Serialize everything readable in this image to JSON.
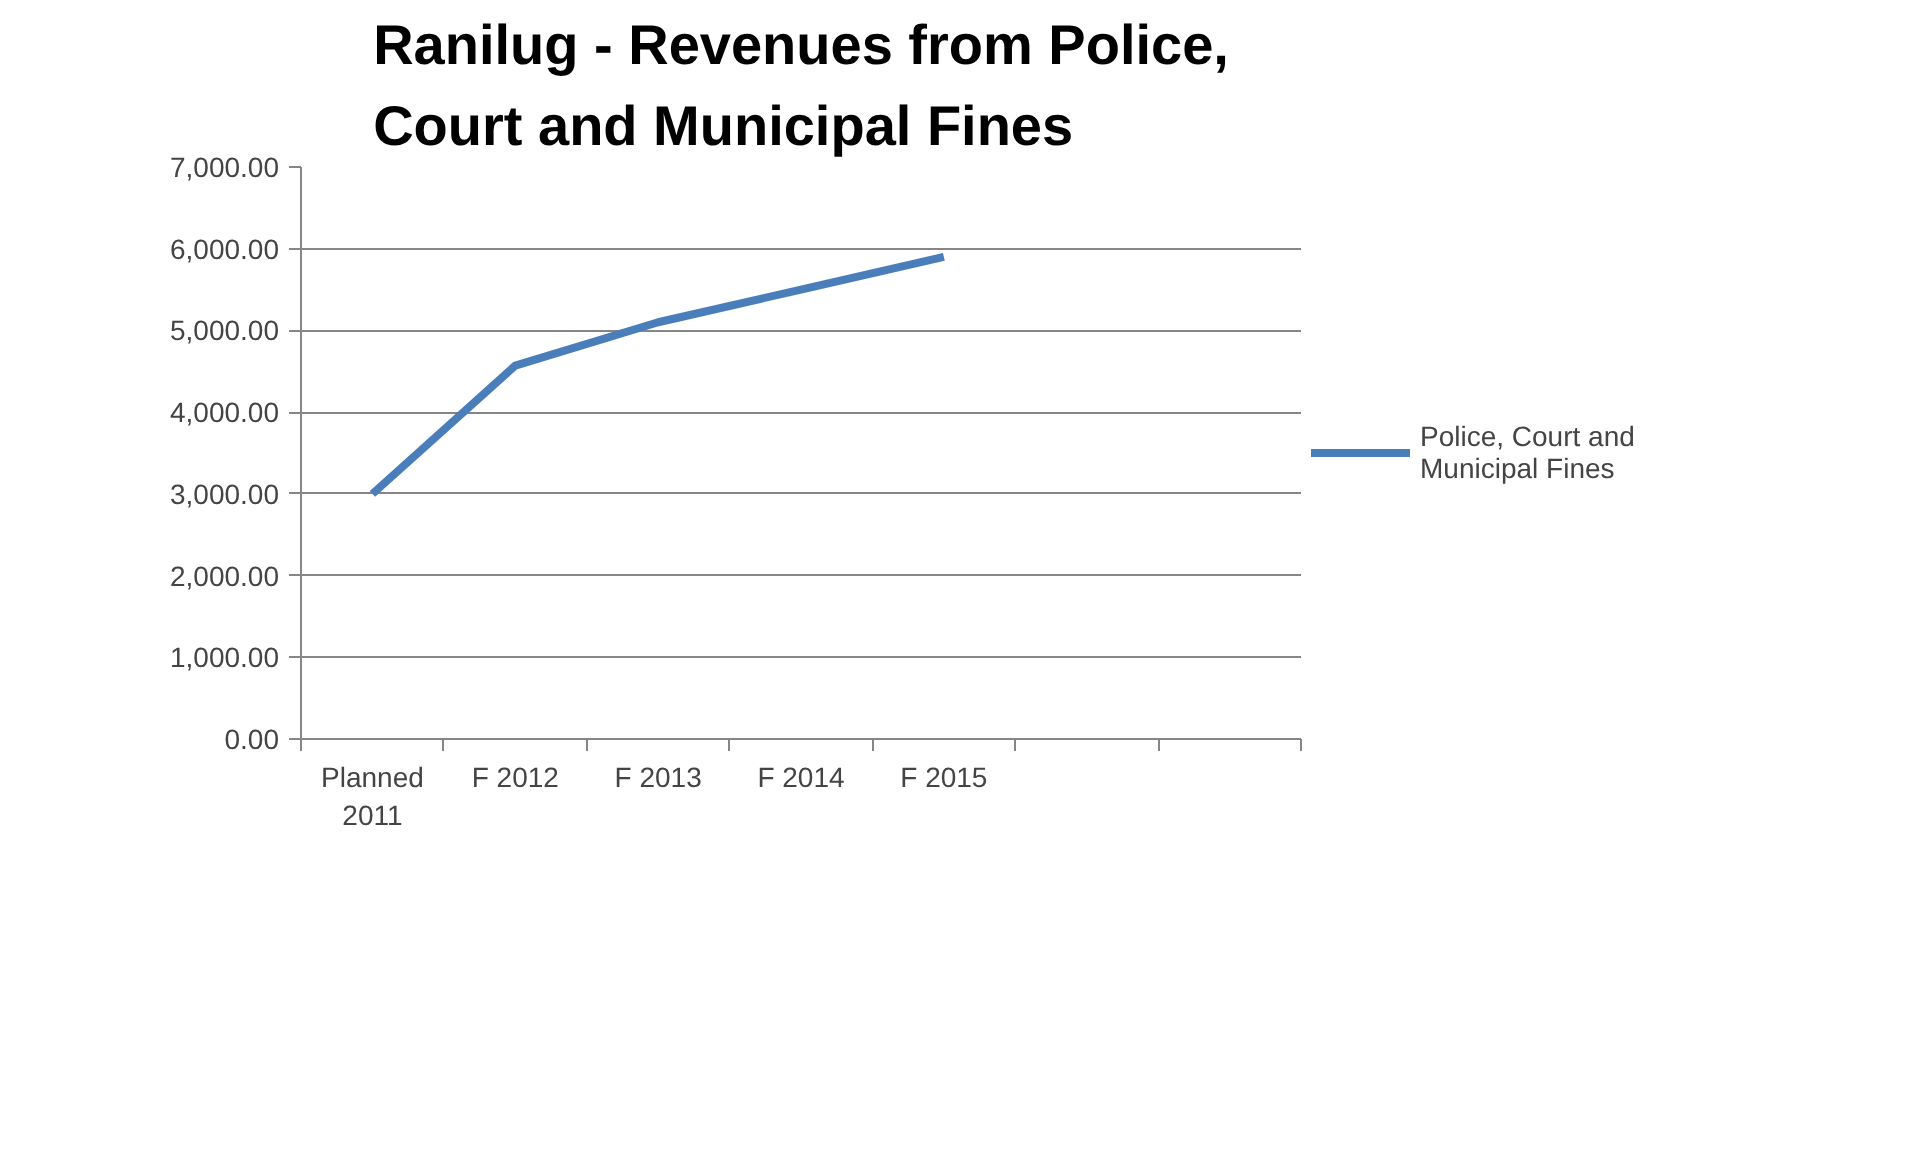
{
  "chart_data": {
    "type": "line",
    "title": "Ranilug - Revenues from Police, Court and Municipal Fines",
    "categories": [
      "Planned\n2011",
      "F 2012",
      "F 2013",
      "F 2014",
      "F 2015",
      null,
      null
    ],
    "series": [
      {
        "name": "Police, Court and Municipal Fines",
        "color": "#4a7ebb",
        "values": [
          3000,
          4570,
          5100,
          5500,
          5900,
          null,
          null
        ]
      }
    ],
    "ylim": [
      0,
      7000
    ],
    "yticks": [
      {
        "value": 0,
        "label": "0.00"
      },
      {
        "value": 1000,
        "label": "1,000.00"
      },
      {
        "value": 2000,
        "label": "2,000.00"
      },
      {
        "value": 3000,
        "label": "3,000.00"
      },
      {
        "value": 4000,
        "label": "4,000.00"
      },
      {
        "value": 5000,
        "label": "5,000.00"
      },
      {
        "value": 6000,
        "label": "6,000.00"
      },
      {
        "value": 7000,
        "label": "7,000.00"
      }
    ],
    "grid": "y",
    "legend": "right",
    "marker": "none",
    "line_style": "solid"
  }
}
